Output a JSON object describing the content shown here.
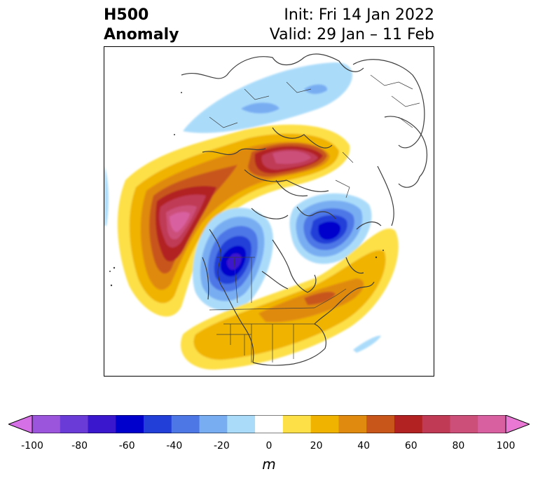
{
  "title": {
    "line1": "H500",
    "line2": "Anomaly",
    "init": "Init: Fri 14 Jan 2022",
    "valid": "Valid: 29 Jan – 11 Feb"
  },
  "colorbar": {
    "unit": "m",
    "ticks": [
      "-100",
      "-80",
      "-60",
      "-40",
      "-20",
      "0",
      "20",
      "40",
      "60",
      "80",
      "100"
    ],
    "levels": [
      -100,
      -90,
      -80,
      -70,
      -60,
      -50,
      -40,
      -30,
      -20,
      -10,
      10,
      20,
      30,
      40,
      50,
      60,
      70,
      80,
      90,
      100
    ],
    "colors": [
      "#d670e6",
      "#9b55dd",
      "#6a3bd6",
      "#3a17cc",
      "#0000cc",
      "#2240d8",
      "#4e77e6",
      "#78adf2",
      "#aadcfa",
      "#ffffff",
      "#fde047",
      "#f0b400",
      "#e08a10",
      "#c8561a",
      "#b22222",
      "#c03a55",
      "#cc4f7a",
      "#d960a0",
      "#e878d4"
    ]
  },
  "map": {
    "projection": "north-polar-stereographic",
    "anomalies": [
      {
        "region": "Gulf of Alaska / North Pacific",
        "sign": "positive",
        "peak_m": 90
      },
      {
        "region": "Arctic / Siberia",
        "sign": "positive",
        "peak_m": 90
      },
      {
        "region": "Western Canada / Alaska",
        "sign": "negative",
        "peak_m": -70
      },
      {
        "region": "Greenland / Iceland",
        "sign": "negative",
        "peak_m": -70
      },
      {
        "region": "Eastern United States / Western Atlantic",
        "sign": "positive",
        "peak_m": 40
      },
      {
        "region": "Eurasia / Arctic Ocean",
        "sign": "negative",
        "peak_m": -30
      }
    ]
  }
}
